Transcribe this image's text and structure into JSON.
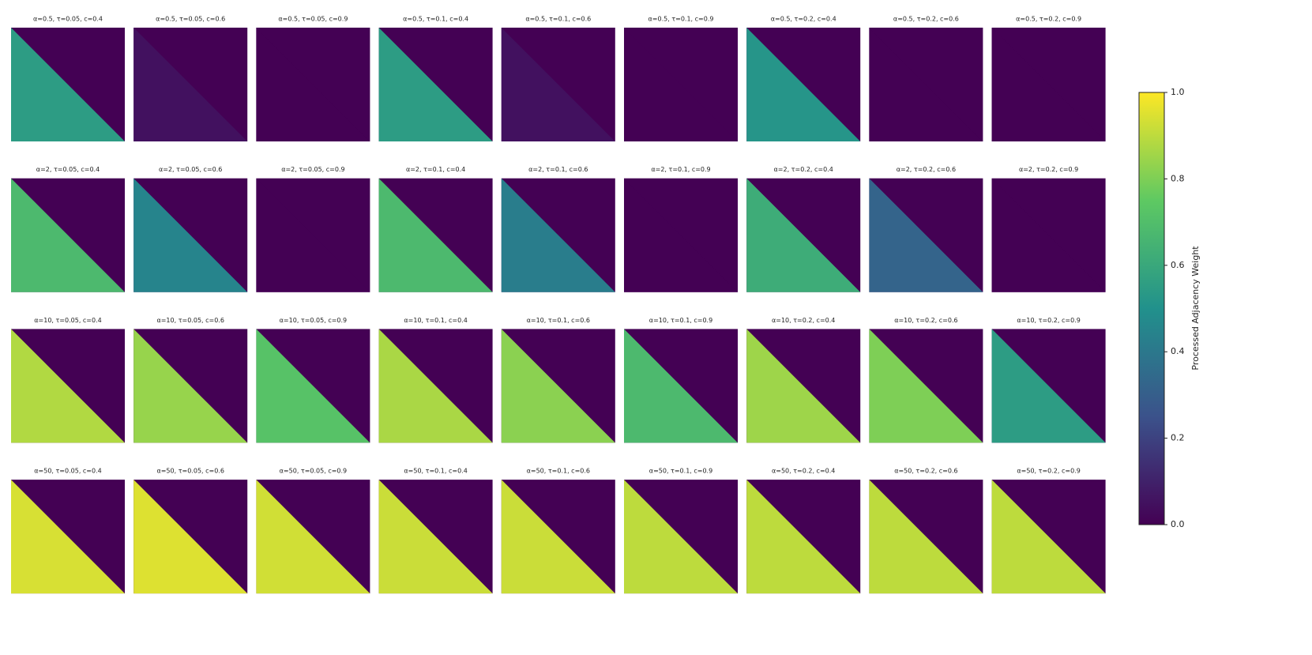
{
  "chart_data": {
    "type": "heatmap-grid",
    "colorbar_label": "Processed Adjacency Weight",
    "colormap": [
      "#440154",
      "#3b528b",
      "#21918c",
      "#5ec962",
      "#fde725"
    ],
    "ylim": [
      0,
      1
    ],
    "yticks": [
      {
        "value": 0,
        "label": "0.0"
      },
      0.2,
      0.4,
      0.6,
      0.8,
      {
        "value": 1,
        "label": "1.0"
      }
    ],
    "columns": 9,
    "panels": [
      {
        "title": "α=0.5, τ=0.05, c=0.4",
        "value": 0.55
      },
      {
        "title": "α=0.5, τ=0.05, c=0.6",
        "value": 0.05
      },
      {
        "title": "α=0.5, τ=0.05, c=0.9",
        "value": 0
      },
      {
        "title": "α=0.5, τ=0.1, c=0.4",
        "value": 0.55
      },
      {
        "title": "α=0.5, τ=0.1, c=0.6",
        "value": 0.05
      },
      {
        "title": "α=0.5, τ=0.1, c=0.9",
        "value": 0
      },
      {
        "title": "α=0.5, τ=0.2, c=0.4",
        "value": 0.52
      },
      {
        "title": "α=0.5, τ=0.2, c=0.6",
        "value": 0
      },
      {
        "title": "α=0.5, τ=0.2, c=0.9",
        "value": 0
      },
      {
        "title": "α=2, τ=0.05, c=0.4",
        "value": 0.68
      },
      {
        "title": "α=2, τ=0.05, c=0.6",
        "value": 0.45
      },
      {
        "title": "α=2, τ=0.05, c=0.9",
        "value": 0
      },
      {
        "title": "α=2, τ=0.1, c=0.4",
        "value": 0.68
      },
      {
        "title": "α=2, τ=0.1, c=0.6",
        "value": 0.42
      },
      {
        "title": "α=2, τ=0.1, c=0.9",
        "value": 0
      },
      {
        "title": "α=2, τ=0.2, c=0.4",
        "value": 0.62
      },
      {
        "title": "α=2, τ=0.2, c=0.6",
        "value": 0.32
      },
      {
        "title": "α=2, τ=0.2, c=0.9",
        "value": 0
      },
      {
        "title": "α=10, τ=0.05, c=0.4",
        "value": 0.88
      },
      {
        "title": "α=10, τ=0.05, c=0.6",
        "value": 0.84
      },
      {
        "title": "α=10, τ=0.05, c=0.9",
        "value": 0.72
      },
      {
        "title": "α=10, τ=0.1, c=0.4",
        "value": 0.87
      },
      {
        "title": "α=10, τ=0.1, c=0.6",
        "value": 0.82
      },
      {
        "title": "α=10, τ=0.1, c=0.9",
        "value": 0.68
      },
      {
        "title": "α=10, τ=0.2, c=0.4",
        "value": 0.85
      },
      {
        "title": "α=10, τ=0.2, c=0.6",
        "value": 0.8
      },
      {
        "title": "α=10, τ=0.2, c=0.9",
        "value": 0.55
      },
      {
        "title": "α=50, τ=0.05, c=0.4",
        "value": 0.94
      },
      {
        "title": "α=50, τ=0.05, c=0.6",
        "value": 0.95
      },
      {
        "title": "α=50, τ=0.05, c=0.9",
        "value": 0.93
      },
      {
        "title": "α=50, τ=0.1, c=0.4",
        "value": 0.92
      },
      {
        "title": "α=50, τ=0.1, c=0.6",
        "value": 0.92
      },
      {
        "title": "α=50, τ=0.1, c=0.9",
        "value": 0.9
      },
      {
        "title": "α=50, τ=0.2, c=0.4",
        "value": 0.9
      },
      {
        "title": "α=50, τ=0.2, c=0.6",
        "value": 0.9
      },
      {
        "title": "α=50, τ=0.2, c=0.9",
        "value": 0.9
      }
    ]
  }
}
